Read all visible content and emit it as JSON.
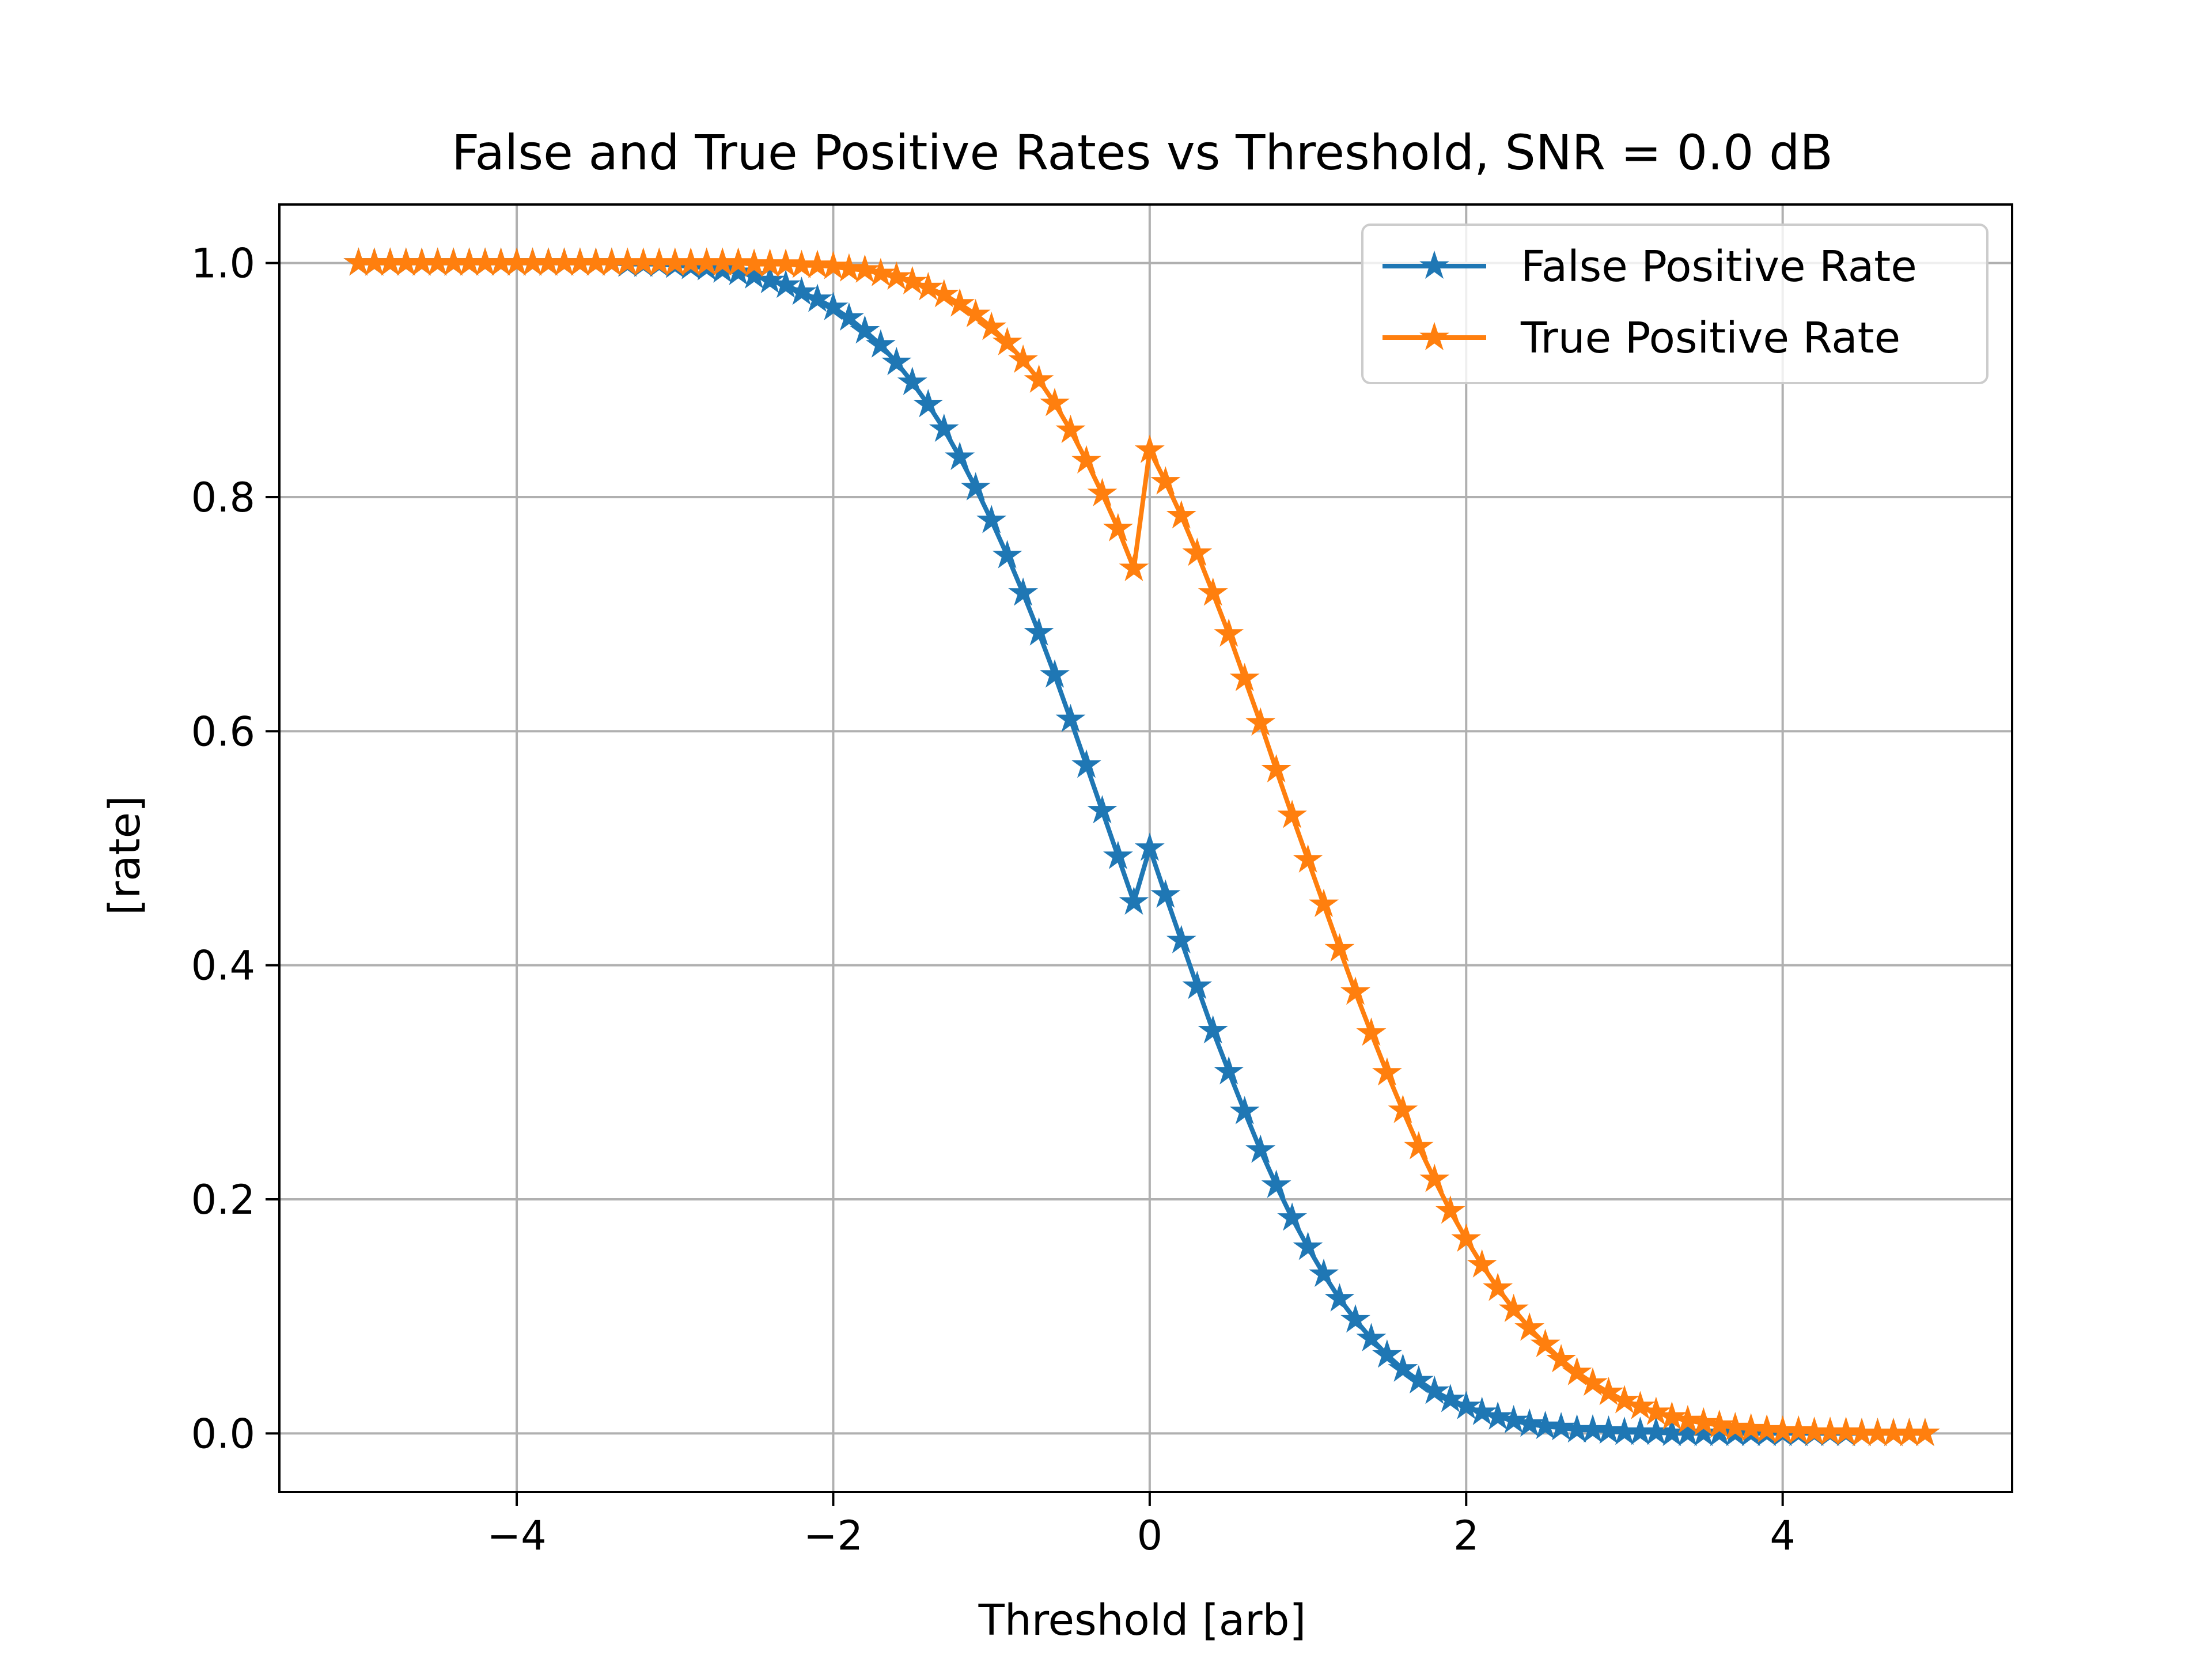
{
  "chart_data": {
    "type": "line",
    "title": "False and True Positive Rates vs Threshold, SNR = 0.0 dB",
    "xlabel": "Threshold [arb]",
    "ylabel": "[rate]",
    "xlim": [
      -5.5,
      5.45
    ],
    "ylim": [
      -0.05,
      1.05
    ],
    "xticks": [
      -4,
      -2,
      0,
      2,
      4
    ],
    "xtick_labels": [
      "−4",
      "−2",
      "0",
      "2",
      "4"
    ],
    "yticks": [
      0.0,
      0.2,
      0.4,
      0.6,
      0.8,
      1.0
    ],
    "ytick_labels": [
      "0.0",
      "0.2",
      "0.4",
      "0.6",
      "0.8",
      "1.0"
    ],
    "grid": true,
    "legend_position": "top-right",
    "x": [
      -5.0,
      -4.9,
      -4.8,
      -4.7,
      -4.6,
      -4.5,
      -4.4,
      -4.3,
      -4.2,
      -4.1,
      -4.0,
      -3.9,
      -3.8,
      -3.7,
      -3.6,
      -3.5,
      -3.4,
      -3.3,
      -3.2,
      -3.1,
      -3.0,
      -2.9,
      -2.8,
      -2.7,
      -2.6,
      -2.5,
      -2.4,
      -2.3,
      -2.2,
      -2.1,
      -2.0,
      -1.9,
      -1.8,
      -1.7,
      -1.6,
      -1.5,
      -1.4,
      -1.3,
      -1.2,
      -1.1,
      -1.0,
      -0.9,
      -0.8,
      -0.7,
      -0.6,
      -0.5,
      -0.4,
      -0.3,
      -0.2,
      -0.1,
      0.0,
      0.1,
      0.2,
      0.3,
      0.4,
      0.5,
      0.6,
      0.7,
      0.8,
      0.9,
      1.0,
      1.1,
      1.2,
      1.3,
      1.4,
      1.5,
      1.6,
      1.7,
      1.8,
      1.9,
      2.0,
      2.1,
      2.2,
      2.3,
      2.4,
      2.5,
      2.6,
      2.7,
      2.8,
      2.9,
      3.0,
      3.1,
      3.2,
      3.3,
      3.4,
      3.5,
      3.6,
      3.7,
      3.8,
      3.9,
      4.0,
      4.1,
      4.2,
      4.3,
      4.4,
      4.5,
      4.6,
      4.7,
      4.8,
      4.9
    ],
    "series": [
      {
        "name": "False Positive Rate",
        "color": "#1f77b4",
        "marker": "star",
        "values": [
          1.0,
          1.0,
          1.0,
          1.0,
          1.0,
          1.0,
          1.0,
          1.0,
          1.0,
          1.0,
          1.0,
          1.0,
          1.0,
          1.0,
          1.0,
          1.0,
          1.0,
          0.999,
          0.999,
          0.999,
          0.998,
          0.997,
          0.996,
          0.994,
          0.992,
          0.989,
          0.985,
          0.981,
          0.975,
          0.969,
          0.962,
          0.953,
          0.942,
          0.93,
          0.915,
          0.898,
          0.879,
          0.858,
          0.834,
          0.808,
          0.78,
          0.75,
          0.718,
          0.684,
          0.648,
          0.61,
          0.571,
          0.532,
          0.493,
          0.454,
          0.5,
          0.46,
          0.421,
          0.382,
          0.344,
          0.309,
          0.275,
          0.242,
          0.212,
          0.184,
          0.159,
          0.136,
          0.115,
          0.097,
          0.081,
          0.067,
          0.055,
          0.045,
          0.036,
          0.029,
          0.023,
          0.018,
          0.014,
          0.011,
          0.008,
          0.006,
          0.005,
          0.003,
          0.003,
          0.002,
          0.001,
          0.001,
          0.001,
          0.0,
          0.0,
          0.0,
          0.0,
          0.0,
          0.0,
          0.0,
          0.0,
          0.0,
          0.0,
          0.0,
          0.0,
          0.0,
          0.0,
          0.0,
          0.0,
          0.0
        ]
      },
      {
        "name": "True Positive Rate",
        "color": "#ff7f0e",
        "marker": "star",
        "values": [
          1.0,
          1.0,
          1.0,
          1.0,
          1.0,
          1.0,
          1.0,
          1.0,
          1.0,
          1.0,
          1.0,
          1.0,
          1.0,
          1.0,
          1.0,
          1.0,
          1.0,
          1.0,
          1.0,
          1.0,
          1.0,
          1.0,
          1.0,
          1.0,
          1.0,
          0.999,
          0.999,
          0.999,
          0.998,
          0.998,
          0.997,
          0.995,
          0.994,
          0.991,
          0.988,
          0.984,
          0.979,
          0.973,
          0.965,
          0.956,
          0.945,
          0.932,
          0.917,
          0.9,
          0.88,
          0.857,
          0.831,
          0.803,
          0.773,
          0.739,
          0.84,
          0.813,
          0.784,
          0.752,
          0.718,
          0.683,
          0.645,
          0.607,
          0.567,
          0.528,
          0.49,
          0.452,
          0.414,
          0.377,
          0.342,
          0.308,
          0.276,
          0.245,
          0.217,
          0.19,
          0.166,
          0.144,
          0.124,
          0.106,
          0.09,
          0.076,
          0.063,
          0.052,
          0.043,
          0.035,
          0.028,
          0.023,
          0.018,
          0.014,
          0.011,
          0.009,
          0.007,
          0.005,
          0.004,
          0.003,
          0.002,
          0.002,
          0.001,
          0.001,
          0.001,
          0.0,
          0.0,
          0.0,
          0.0,
          0.0
        ]
      }
    ]
  }
}
